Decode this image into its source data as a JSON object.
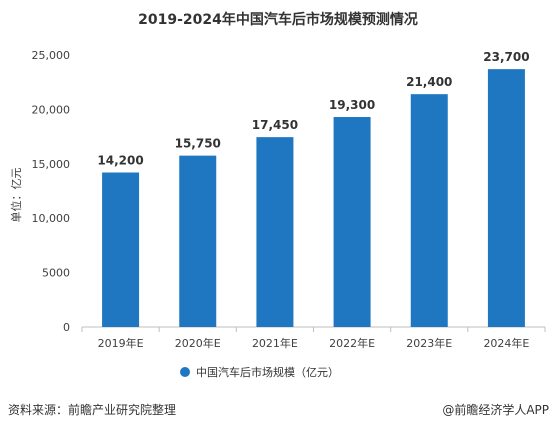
{
  "chart_data": {
    "type": "bar",
    "title": "2019-2024年中国汽车后市场规模预测情况",
    "ylabel": "单位：亿元",
    "xlabel": "",
    "categories": [
      "2019年E",
      "2020年E",
      "2021年E",
      "2022年E",
      "2023年E",
      "2024年E"
    ],
    "series": [
      {
        "name": "中国汽车后市场规模（亿元）",
        "values": [
          14200,
          15750,
          17450,
          19300,
          21400,
          23700
        ],
        "labels": [
          "14,200",
          "15,750",
          "17,450",
          "19,300",
          "21,400",
          "23,700"
        ],
        "color": "#1f77c1"
      }
    ],
    "ylim": [
      0,
      25000
    ],
    "yticks": [
      0,
      5000,
      10000,
      15000,
      20000,
      25000
    ],
    "ytick_labels": [
      "0",
      "5000",
      "10,000",
      "15,000",
      "20,000",
      "25,000"
    ],
    "grid": false,
    "legend_position": "bottom"
  },
  "footer": {
    "source": "资料来源：前瞻产业研究院整理",
    "credit": "@前瞻经济学人APP"
  },
  "colors": {
    "bar": "#1f77c1",
    "axis": "#bfbfbf"
  }
}
